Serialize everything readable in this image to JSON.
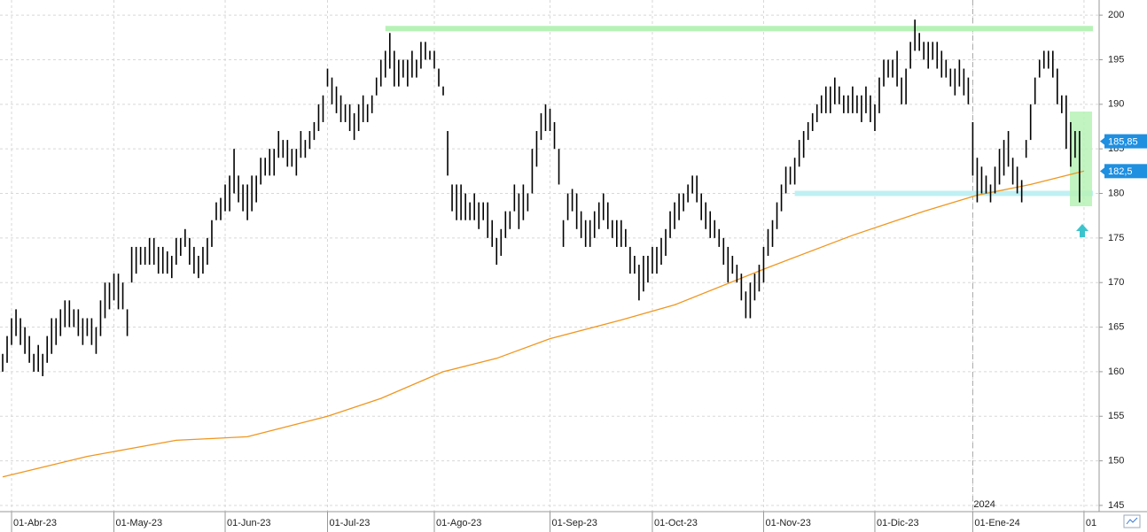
{
  "chart_data": {
    "type": "ohlc",
    "xlim": [
      -0.6,
      246.4
    ],
    "ylim": [
      144.3,
      201.7
    ],
    "yticks": [
      145,
      150,
      155,
      160,
      165,
      170,
      175,
      180,
      185,
      190,
      195,
      200
    ],
    "xticks": [
      {
        "value": 2,
        "label": "01-Abr-23"
      },
      {
        "value": 25,
        "label": "01-May-23"
      },
      {
        "value": 50,
        "label": "01-Jun-23"
      },
      {
        "value": 73,
        "label": "01-Jul-23"
      },
      {
        "value": 97,
        "label": "01-Ago-23"
      },
      {
        "value": 123,
        "label": "01-Sep-23"
      },
      {
        "value": 146,
        "label": "01-Oct-23"
      },
      {
        "value": 171,
        "label": "01-Nov-23"
      },
      {
        "value": 196,
        "label": "01-Dic-23"
      },
      {
        "value": 218,
        "label": "01-Ene-24"
      },
      {
        "value": 243,
        "label": "01"
      }
    ],
    "year_marker": {
      "value": 218,
      "label": "2024"
    },
    "grid": true,
    "bars": {
      "color": "#000000",
      "high": [
        162,
        164,
        166,
        167,
        166,
        165,
        164,
        162,
        163,
        162,
        164,
        166,
        166,
        167,
        168,
        168,
        167,
        167,
        166,
        166,
        166,
        165,
        168,
        170,
        170,
        171,
        171,
        170,
        167,
        174,
        174,
        174,
        174,
        175,
        175,
        174,
        174,
        173.5,
        173,
        175,
        175,
        176,
        175,
        174,
        173,
        174,
        175,
        177,
        179,
        179.5,
        181,
        182,
        185,
        182,
        181,
        181,
        182,
        182,
        184,
        184,
        185,
        185,
        187,
        186,
        186,
        185,
        185,
        187,
        186,
        187,
        188,
        190,
        191,
        194,
        193,
        192,
        191,
        190,
        190,
        189,
        190,
        191,
        190,
        191,
        193,
        195,
        196,
        198,
        196,
        195,
        195,
        195,
        196,
        195,
        197,
        197,
        196,
        196,
        194,
        192,
        187,
        181,
        181,
        181,
        180,
        179,
        180,
        179,
        179,
        179,
        177,
        175,
        176,
        178,
        178,
        181,
        180,
        181,
        180,
        185,
        187,
        189,
        190,
        189.5,
        188,
        185,
        177,
        180,
        180.5,
        180,
        178,
        177,
        177,
        178,
        179,
        180,
        179,
        177,
        177,
        177,
        176,
        174,
        173,
        172,
        173,
        173,
        174,
        174,
        175,
        176,
        178,
        179,
        180,
        180,
        181,
        182,
        182,
        180,
        179,
        178,
        177,
        176,
        175,
        174,
        173,
        172,
        171,
        169,
        170,
        171,
        172,
        174,
        176,
        177,
        179,
        181,
        183,
        183,
        184,
        186,
        187,
        188,
        189,
        190,
        191,
        192,
        192,
        193,
        192,
        191,
        191,
        192,
        191,
        191,
        192,
        191,
        190,
        193,
        195,
        195,
        195,
        196,
        193,
        194,
        197,
        199.5,
        198,
        197,
        197,
        197,
        197,
        196,
        195,
        194,
        194,
        195,
        194,
        193,
        188,
        184,
        183,
        182,
        181,
        183,
        185,
        186,
        187,
        184,
        183,
        181.5,
        186,
        190,
        193,
        195,
        196,
        196,
        196,
        194,
        191,
        191,
        188,
        187,
        187
      ],
      "low": [
        160,
        161,
        163,
        164,
        163,
        162,
        161,
        160,
        160,
        159.5,
        161,
        162,
        163,
        164,
        165,
        165,
        165,
        164,
        163,
        164,
        163,
        162,
        164,
        166,
        167,
        168,
        167,
        167,
        164,
        170,
        171,
        172,
        172,
        172,
        172,
        171,
        171,
        171,
        170.5,
        172,
        173,
        174,
        172,
        171,
        170.5,
        171,
        172,
        174,
        177,
        177,
        178,
        178,
        180,
        179,
        178,
        177,
        178,
        179,
        181,
        182,
        182,
        182,
        184,
        184,
        183,
        183,
        182,
        184,
        184,
        185,
        186,
        187,
        188,
        192,
        190,
        189,
        188,
        188,
        187,
        186,
        187,
        188,
        188,
        189,
        191,
        192,
        193,
        194,
        192,
        192,
        193,
        192,
        193,
        193,
        194,
        195,
        195,
        194,
        192,
        191,
        182,
        178,
        177,
        177,
        177,
        177,
        177,
        176,
        177,
        175,
        174,
        172,
        173,
        175,
        176,
        178,
        176,
        177,
        178,
        180,
        183,
        186,
        187,
        187,
        185,
        181,
        174,
        177,
        178,
        176,
        175,
        174,
        174,
        175,
        176,
        177,
        176,
        175,
        174,
        174,
        174,
        171,
        171,
        168,
        169,
        170,
        171,
        171,
        172,
        173,
        175,
        176,
        177,
        178,
        179,
        180,
        179,
        177,
        176,
        175,
        175,
        174,
        172,
        170,
        171,
        170,
        168,
        166,
        166,
        168,
        169,
        170,
        173,
        174,
        176,
        178,
        180,
        181,
        181,
        183,
        184,
        186,
        187,
        188,
        189,
        189,
        189,
        190,
        190,
        189,
        189,
        189,
        189,
        188,
        189,
        188,
        187,
        189,
        192,
        193,
        193,
        192,
        190,
        190,
        194,
        196,
        196,
        195,
        194,
        195,
        194,
        193,
        193,
        192,
        191,
        192,
        191,
        190,
        182,
        179,
        180,
        180,
        179,
        180,
        181,
        182,
        183,
        181,
        180,
        179,
        184,
        186,
        190,
        193,
        194,
        194,
        193,
        190,
        189,
        185,
        183,
        184,
        179
      ]
    },
    "moving_average": {
      "color": "#f0961e",
      "x": [
        0,
        19,
        39,
        55,
        73,
        85,
        99,
        111,
        123,
        139,
        151,
        171,
        191,
        207,
        219,
        231,
        243
      ],
      "values": [
        148.2,
        150.5,
        152.3,
        152.7,
        155,
        157,
        160,
        161.5,
        163.7,
        165.8,
        167.5,
        171.5,
        175.3,
        178,
        179.8,
        181,
        182.5
      ]
    },
    "levels": [
      {
        "value": 198.5,
        "from": 86,
        "to": 245,
        "color": "#b6f2b6"
      },
      {
        "value": 180,
        "from": 178,
        "to": 245,
        "color": "#bff0f3"
      }
    ],
    "price_tags": [
      {
        "value": 185.85,
        "label": "185,85"
      },
      {
        "value": 182.5,
        "label": "182,5"
      }
    ]
  }
}
